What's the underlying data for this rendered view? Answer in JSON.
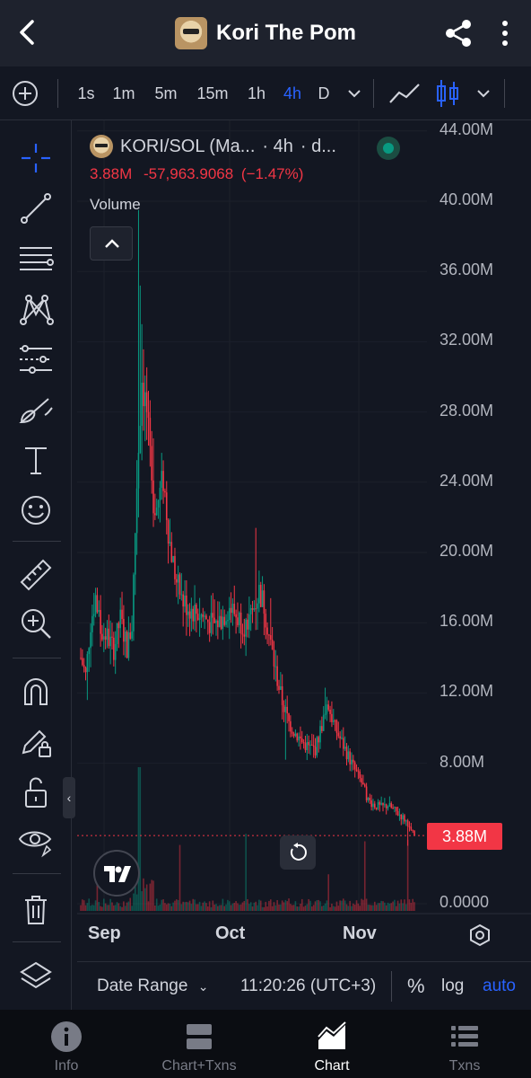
{
  "app_title": "Kori The Pom",
  "toolbar": {
    "intervals": [
      "1s",
      "1m",
      "5m",
      "15m",
      "1h",
      "4h",
      "D"
    ],
    "active_interval": "4h"
  },
  "legend": {
    "symbol": "KORI/SOL (Ma...",
    "interval": "· 4h",
    "exchange": "· d...",
    "last_price": "3.88M",
    "change": "-57,963.9068",
    "change_pct": "(−1.47%)",
    "volume_label": "Volume"
  },
  "price_tag": "3.88M",
  "chart_data": {
    "type": "candlestick",
    "y_ticks": [
      "44.00M",
      "40.00M",
      "36.00M",
      "32.00M",
      "28.00M",
      "24.00M",
      "20.00M",
      "16.00M",
      "12.00M",
      "8.00M",
      "0.0000"
    ],
    "x_ticks": [
      "Sep",
      "Oct",
      "Nov"
    ],
    "last_price": 3.88,
    "price_shape": [
      [
        0,
        14
      ],
      [
        3,
        13
      ],
      [
        6,
        16
      ],
      [
        9,
        17.5
      ],
      [
        12,
        15.5
      ],
      [
        16,
        15.2
      ],
      [
        20,
        14.5
      ],
      [
        24,
        16.2
      ],
      [
        28,
        14.6
      ],
      [
        31,
        15.8
      ],
      [
        34,
        24
      ],
      [
        37,
        30
      ],
      [
        40,
        28
      ],
      [
        43,
        23.5
      ],
      [
        46,
        22.5
      ],
      [
        50,
        24.2
      ],
      [
        54,
        20.5
      ],
      [
        58,
        18.3
      ],
      [
        62,
        17.2
      ],
      [
        66,
        16.8
      ],
      [
        70,
        16.6
      ],
      [
        75,
        16.3
      ],
      [
        80,
        15.8
      ],
      [
        85,
        16.2
      ],
      [
        90,
        16.9
      ],
      [
        95,
        16.3
      ],
      [
        100,
        15.8
      ],
      [
        104,
        16.6
      ],
      [
        108,
        17.8
      ],
      [
        111,
        17.0
      ],
      [
        114,
        15.3
      ],
      [
        118,
        13.2
      ],
      [
        122,
        11.5
      ],
      [
        126,
        10.3
      ],
      [
        130,
        9.7
      ],
      [
        134,
        9.2
      ],
      [
        138,
        8.9
      ],
      [
        142,
        8.8
      ],
      [
        146,
        10.2
      ],
      [
        150,
        11.2
      ],
      [
        154,
        10.0
      ],
      [
        158,
        9.2
      ],
      [
        162,
        8.4
      ],
      [
        166,
        7.6
      ],
      [
        170,
        6.9
      ],
      [
        174,
        5.9
      ],
      [
        178,
        5.6
      ],
      [
        182,
        5.5
      ],
      [
        186,
        5.6
      ],
      [
        190,
        5.3
      ],
      [
        194,
        5.0
      ],
      [
        198,
        4.6
      ],
      [
        200,
        4.1
      ],
      [
        202,
        3.88
      ]
    ]
  },
  "bottom_bar": {
    "date_range": "Date Range",
    "clock": "11:20:26 (UTC+3)",
    "percent": "%",
    "log": "log",
    "auto": "auto"
  },
  "nav": [
    {
      "label": "Info"
    },
    {
      "label": "Chart+Txns"
    },
    {
      "label": "Chart"
    },
    {
      "label": "Txns"
    }
  ],
  "active_nav": "Chart",
  "colors": {
    "up": "#089981",
    "down": "#f23645",
    "accent": "#2962ff",
    "background": "#131722"
  }
}
